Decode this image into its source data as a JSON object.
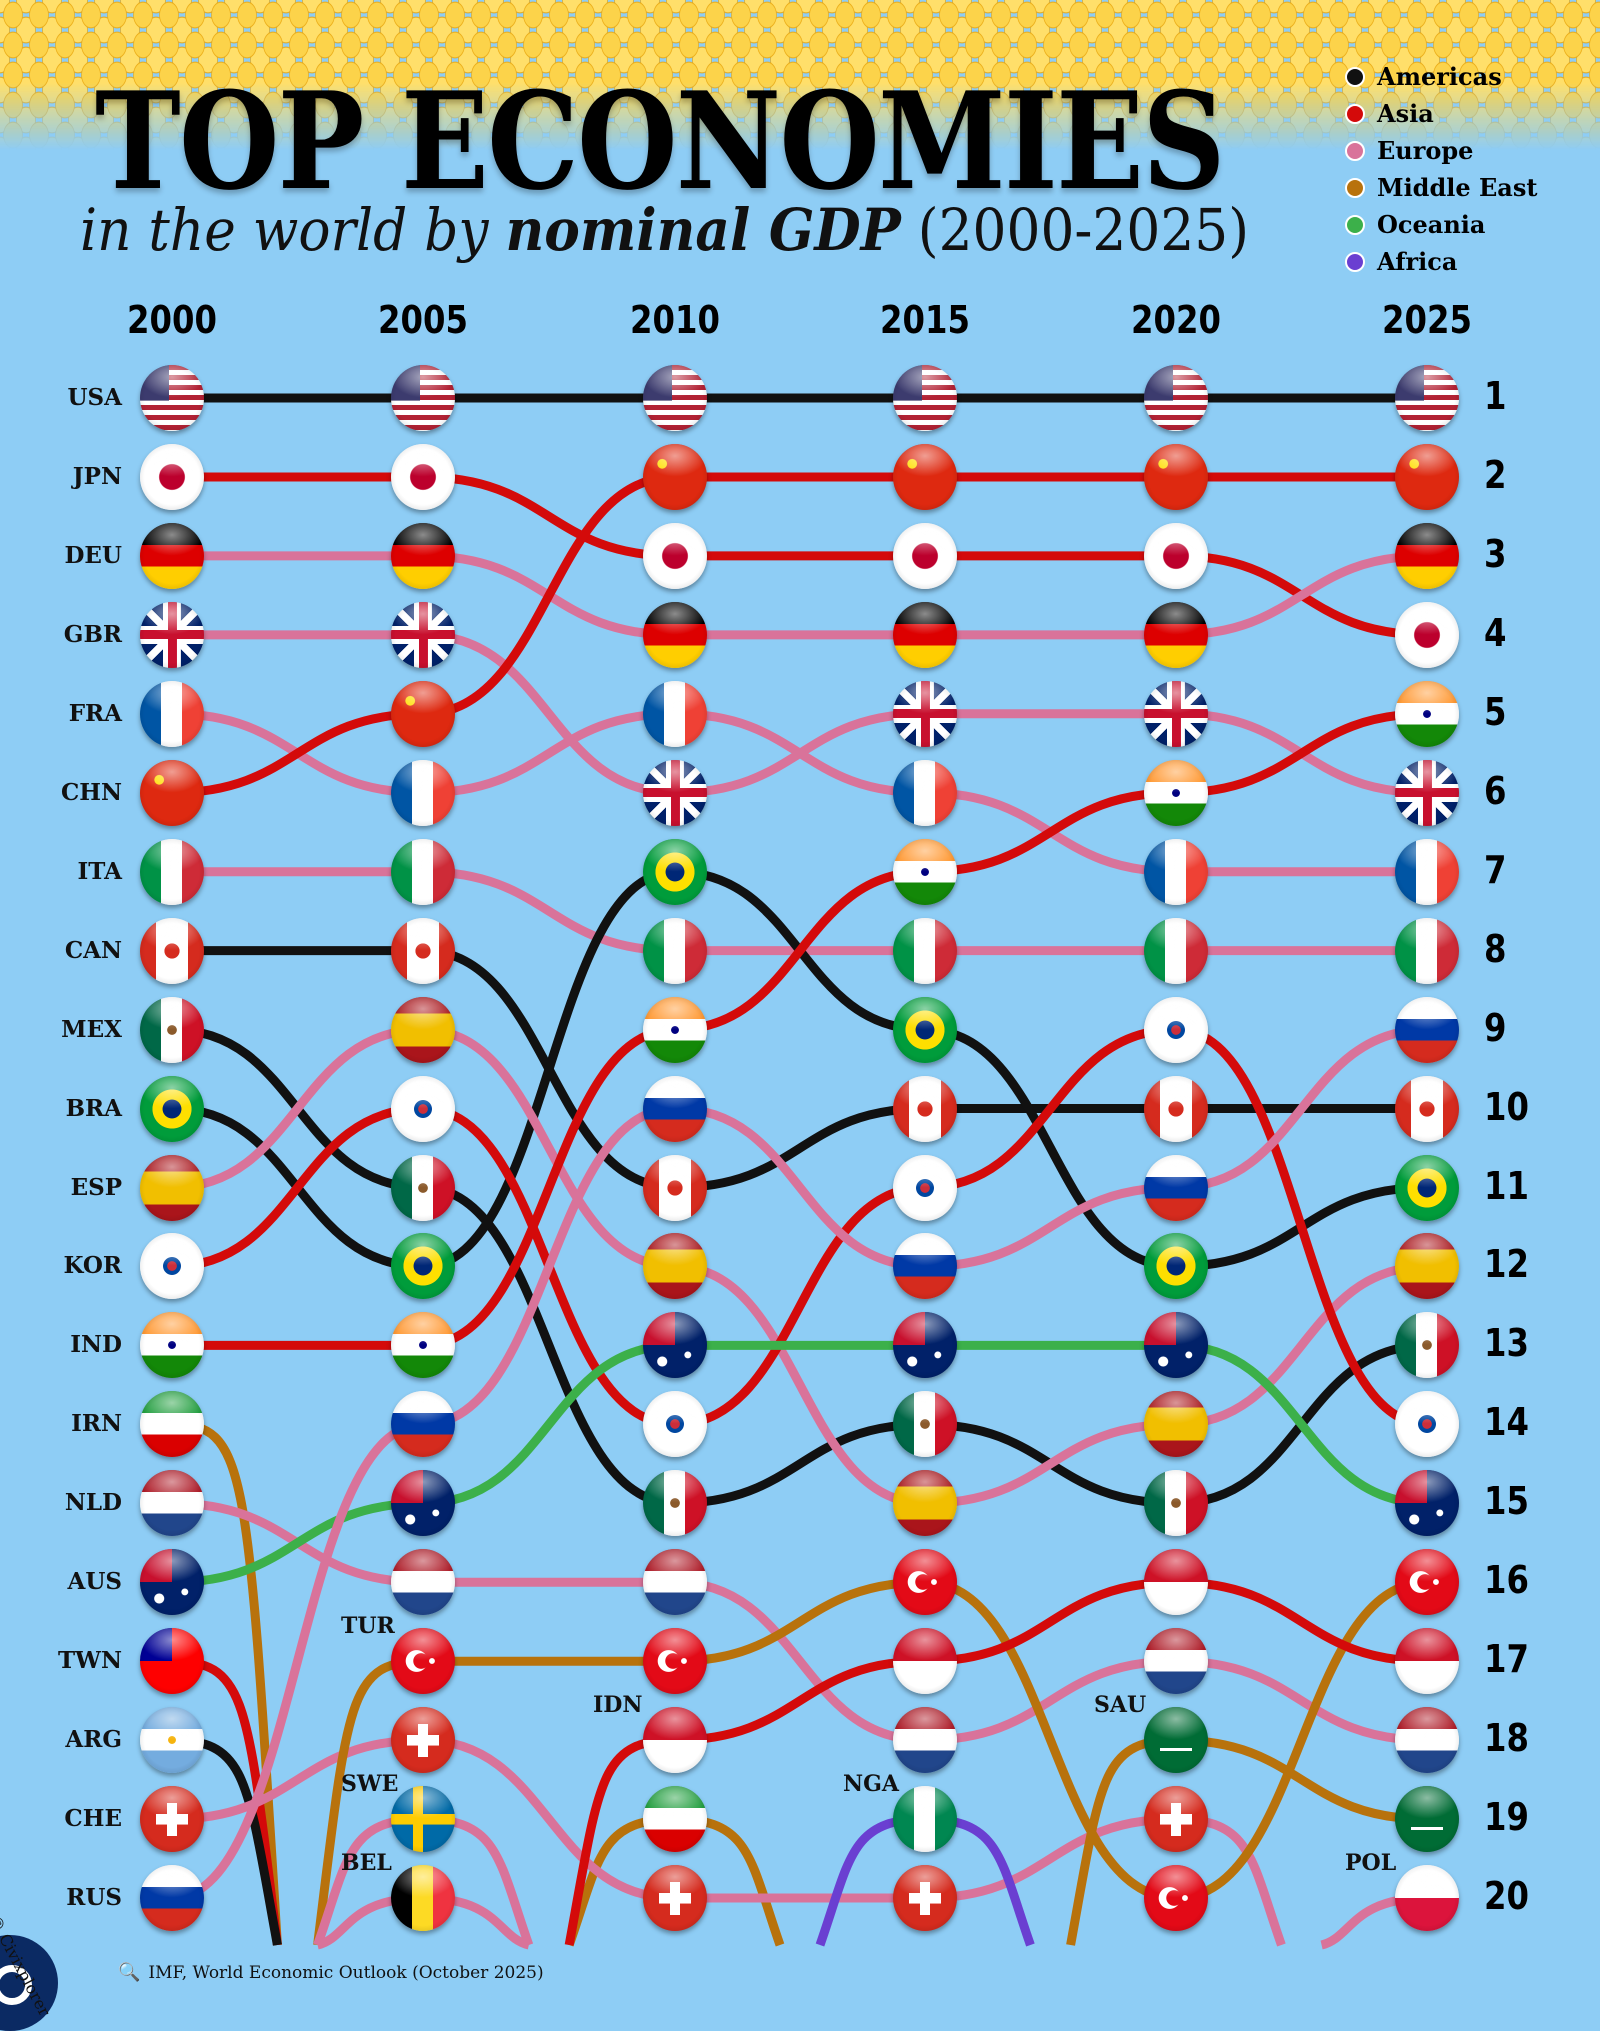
{
  "header": {
    "title": "TOP ECONOMIES",
    "subtitle_italic": "in the world by",
    "subtitle_bold": "nominal GDP",
    "subtitle_years": "(2000-2025)"
  },
  "legend": [
    {
      "label": "Americas",
      "color": "#111111"
    },
    {
      "label": "Asia",
      "color": "#d40a0a"
    },
    {
      "label": "Europe",
      "color": "#d9739a"
    },
    {
      "label": "Middle East",
      "color": "#b8720c"
    },
    {
      "label": "Oceania",
      "color": "#3cb04a"
    },
    {
      "label": "Africa",
      "color": "#6a3fd1"
    }
  ],
  "chart_data": {
    "type": "bump",
    "title": "TOP ECONOMIES in the world by nominal GDP (2000-2025)",
    "x": [
      "2000",
      "2005",
      "2010",
      "2015",
      "2020",
      "2025"
    ],
    "rank_labels": [
      "1",
      "2",
      "3",
      "4",
      "5",
      "6",
      "7",
      "8",
      "9",
      "10",
      "11",
      "12",
      "13",
      "14",
      "15",
      "16",
      "17",
      "18",
      "19",
      "20"
    ],
    "series": [
      {
        "name": "USA",
        "region": "Americas",
        "ranks": [
          1,
          1,
          1,
          1,
          1,
          1
        ]
      },
      {
        "name": "JPN",
        "region": "Asia",
        "ranks": [
          2,
          2,
          3,
          3,
          3,
          4
        ]
      },
      {
        "name": "DEU",
        "region": "Europe",
        "ranks": [
          3,
          3,
          4,
          4,
          4,
          3
        ]
      },
      {
        "name": "GBR",
        "region": "Europe",
        "ranks": [
          4,
          4,
          6,
          5,
          5,
          6
        ]
      },
      {
        "name": "FRA",
        "region": "Europe",
        "ranks": [
          5,
          6,
          5,
          6,
          7,
          7
        ]
      },
      {
        "name": "CHN",
        "region": "Asia",
        "ranks": [
          6,
          5,
          2,
          2,
          2,
          2
        ]
      },
      {
        "name": "ITA",
        "region": "Europe",
        "ranks": [
          7,
          7,
          8,
          8,
          8,
          8
        ]
      },
      {
        "name": "CAN",
        "region": "Americas",
        "ranks": [
          8,
          8,
          11,
          10,
          10,
          10
        ]
      },
      {
        "name": "MEX",
        "region": "Americas",
        "ranks": [
          9,
          11,
          15,
          14,
          15,
          13
        ]
      },
      {
        "name": "BRA",
        "region": "Americas",
        "ranks": [
          10,
          12,
          7,
          9,
          12,
          11
        ]
      },
      {
        "name": "ESP",
        "region": "Europe",
        "ranks": [
          11,
          9,
          12,
          15,
          14,
          12
        ]
      },
      {
        "name": "KOR",
        "region": "Asia",
        "ranks": [
          12,
          10,
          14,
          11,
          9,
          14
        ]
      },
      {
        "name": "IND",
        "region": "Asia",
        "ranks": [
          13,
          13,
          9,
          7,
          6,
          5
        ]
      },
      {
        "name": "IRN",
        "region": "Middle East",
        "ranks": [
          14,
          null,
          19,
          null,
          null,
          null
        ]
      },
      {
        "name": "NLD",
        "region": "Europe",
        "ranks": [
          15,
          16,
          16,
          18,
          17,
          18
        ]
      },
      {
        "name": "AUS",
        "region": "Oceania",
        "ranks": [
          16,
          15,
          13,
          13,
          13,
          15
        ]
      },
      {
        "name": "TWN",
        "region": "Asia",
        "ranks": [
          17,
          null,
          null,
          null,
          null,
          null
        ]
      },
      {
        "name": "ARG",
        "region": "Americas",
        "ranks": [
          18,
          null,
          null,
          null,
          null,
          null
        ]
      },
      {
        "name": "CHE",
        "region": "Europe",
        "ranks": [
          19,
          18,
          20,
          20,
          19,
          null
        ]
      },
      {
        "name": "RUS",
        "region": "Europe",
        "ranks": [
          20,
          14,
          10,
          12,
          11,
          9
        ]
      },
      {
        "name": "TUR",
        "region": "Middle East",
        "ranks": [
          null,
          17,
          17,
          16,
          20,
          16
        ]
      },
      {
        "name": "SWE",
        "region": "Europe",
        "ranks": [
          null,
          19,
          null,
          null,
          null,
          null
        ]
      },
      {
        "name": "BEL",
        "region": "Europe",
        "ranks": [
          null,
          20,
          null,
          null,
          null,
          null
        ]
      },
      {
        "name": "IDN",
        "region": "Asia",
        "ranks": [
          null,
          null,
          18,
          17,
          16,
          17
        ]
      },
      {
        "name": "NGA",
        "region": "Africa",
        "ranks": [
          null,
          null,
          null,
          19,
          null,
          null
        ]
      },
      {
        "name": "SAU",
        "region": "Middle East",
        "ranks": [
          null,
          null,
          null,
          null,
          18,
          19
        ]
      },
      {
        "name": "POL",
        "region": "Europe",
        "ranks": [
          null,
          null,
          null,
          null,
          null,
          20
        ]
      }
    ]
  },
  "footer": {
    "source": "IMF, World Economic Outlook (October 2025)",
    "source_icon": "magnifier-icon",
    "credit": "© Civixplorer"
  }
}
